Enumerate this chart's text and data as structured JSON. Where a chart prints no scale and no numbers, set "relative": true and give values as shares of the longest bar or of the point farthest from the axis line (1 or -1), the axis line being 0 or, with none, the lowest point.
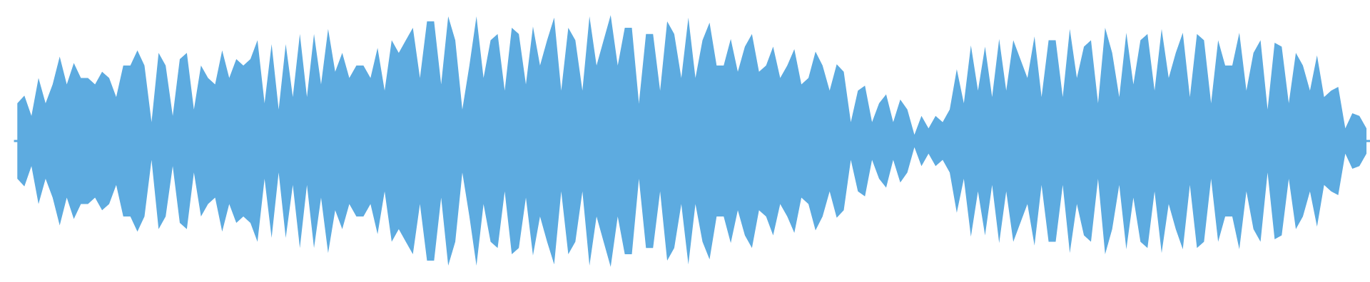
{
  "chart_data": {
    "type": "area",
    "relative": true,
    "ref_lines": [
      {
        "axis": "y",
        "value": 0,
        "color": "#5dabe0"
      }
    ],
    "categories": [
      null,
      null,
      null,
      null,
      null,
      null,
      null,
      null,
      null,
      null,
      null,
      null,
      null,
      null,
      null,
      null,
      null,
      null,
      null,
      null,
      null,
      null,
      null,
      null,
      null,
      null,
      null,
      null,
      null,
      null,
      null,
      null,
      null,
      null,
      null,
      null,
      null,
      null,
      null,
      null,
      null,
      null,
      null,
      null,
      null,
      null,
      null,
      null,
      null,
      null,
      null,
      null,
      null,
      null,
      null,
      null,
      null,
      null,
      null,
      null,
      null,
      null,
      null,
      null,
      null,
      null,
      null,
      null,
      null,
      null,
      null,
      null,
      null,
      null,
      null,
      null,
      null,
      null,
      null,
      null,
      null,
      null,
      null,
      null,
      null,
      null,
      null,
      null,
      null,
      null,
      null,
      null,
      null,
      null,
      null,
      null,
      null,
      null,
      null,
      null,
      null,
      null,
      null,
      null,
      null,
      null,
      null,
      null,
      null,
      null,
      null,
      null,
      null,
      null,
      null,
      null,
      null,
      null,
      null,
      null,
      null,
      null,
      null,
      null,
      null,
      null,
      null,
      null,
      null,
      null,
      null,
      null,
      null,
      null,
      null,
      null,
      null,
      null,
      null,
      null,
      null,
      null,
      null,
      null,
      null,
      null,
      null,
      null,
      null,
      null,
      null,
      null,
      null,
      null,
      null,
      null,
      null,
      null,
      null,
      null,
      null,
      null,
      null,
      null,
      null,
      null,
      null,
      null,
      null,
      null,
      null,
      null,
      null,
      null,
      null,
      null,
      null,
      null,
      null,
      null,
      null,
      null,
      null,
      null,
      null,
      null,
      null,
      null,
      null,
      null,
      null,
      null
    ],
    "series": [
      {
        "color": "#5dabe0",
        "values": [
          0.3,
          0.36,
          0.2,
          0.5,
          0.3,
          0.45,
          0.67,
          0.45,
          0.62,
          0.5,
          0.5,
          0.45,
          0.55,
          0.5,
          0.35,
          0.6,
          0.6,
          0.72,
          0.6,
          0.15,
          0.7,
          0.6,
          0.2,
          0.65,
          0.7,
          0.25,
          0.6,
          0.5,
          0.45,
          0.72,
          0.5,
          0.65,
          0.6,
          0.65,
          0.8,
          0.3,
          0.77,
          0.25,
          0.77,
          0.35,
          0.85,
          0.35,
          0.85,
          0.45,
          0.89,
          0.55,
          0.7,
          0.5,
          0.6,
          0.6,
          0.5,
          0.74,
          0.4,
          0.8,
          0.7,
          0.8,
          0.9,
          0.5,
          0.95,
          0.95,
          0.45,
          0.99,
          0.8,
          0.25,
          0.6,
          0.99,
          0.5,
          0.8,
          0.85,
          0.4,
          0.9,
          0.85,
          0.45,
          0.91,
          0.6,
          0.8,
          0.98,
          0.4,
          0.9,
          0.8,
          0.4,
          0.99,
          0.6,
          0.8,
          1.0,
          0.6,
          0.9,
          0.9,
          0.3,
          0.85,
          0.85,
          0.4,
          0.95,
          0.85,
          0.5,
          0.98,
          0.5,
          0.8,
          0.94,
          0.6,
          0.6,
          0.81,
          0.55,
          0.75,
          0.85,
          0.55,
          0.6,
          0.75,
          0.5,
          0.6,
          0.73,
          0.45,
          0.5,
          0.71,
          0.6,
          0.4,
          0.61,
          0.55,
          0.15,
          0.4,
          0.44,
          0.15,
          0.3,
          0.37,
          0.15,
          0.33,
          0.25,
          0.05,
          0.2,
          0.1,
          0.2,
          0.15,
          0.25,
          0.57,
          0.3,
          0.76,
          0.4,
          0.75,
          0.35,
          0.81,
          0.4,
          0.8,
          0.65,
          0.5,
          0.83,
          0.35,
          0.8,
          0.8,
          0.35,
          0.89,
          0.5,
          0.75,
          0.8,
          0.3,
          0.9,
          0.7,
          0.35,
          0.86,
          0.45,
          0.8,
          0.85,
          0.4,
          0.89,
          0.5,
          0.7,
          0.86,
          0.35,
          0.85,
          0.8,
          0.3,
          0.8,
          0.6,
          0.6,
          0.86,
          0.4,
          0.7,
          0.8,
          0.25,
          0.78,
          0.75,
          0.3,
          0.7,
          0.6,
          0.4,
          0.68,
          0.35,
          0.4,
          0.43,
          0.1,
          0.22,
          0.2,
          0.1
        ]
      },
      {
        "color": "#5dabe0",
        "values": [
          -0.3,
          -0.36,
          -0.2,
          -0.5,
          -0.3,
          -0.45,
          -0.67,
          -0.45,
          -0.62,
          -0.5,
          -0.5,
          -0.45,
          -0.55,
          -0.5,
          -0.35,
          -0.6,
          -0.6,
          -0.72,
          -0.6,
          -0.15,
          -0.7,
          -0.6,
          -0.2,
          -0.65,
          -0.7,
          -0.25,
          -0.6,
          -0.5,
          -0.45,
          -0.72,
          -0.5,
          -0.65,
          -0.6,
          -0.65,
          -0.8,
          -0.3,
          -0.77,
          -0.25,
          -0.77,
          -0.35,
          -0.85,
          -0.35,
          -0.85,
          -0.45,
          -0.89,
          -0.55,
          -0.7,
          -0.5,
          -0.6,
          -0.6,
          -0.5,
          -0.74,
          -0.4,
          -0.8,
          -0.7,
          -0.8,
          -0.9,
          -0.5,
          -0.95,
          -0.95,
          -0.45,
          -0.99,
          -0.8,
          -0.25,
          -0.6,
          -0.99,
          -0.5,
          -0.8,
          -0.85,
          -0.4,
          -0.9,
          -0.85,
          -0.45,
          -0.91,
          -0.6,
          -0.8,
          -0.98,
          -0.4,
          -0.9,
          -0.8,
          -0.4,
          -0.99,
          -0.6,
          -0.8,
          -1.0,
          -0.6,
          -0.9,
          -0.9,
          -0.3,
          -0.85,
          -0.85,
          -0.4,
          -0.95,
          -0.85,
          -0.5,
          -0.98,
          -0.5,
          -0.8,
          -0.94,
          -0.6,
          -0.6,
          -0.81,
          -0.55,
          -0.75,
          -0.85,
          -0.55,
          -0.6,
          -0.75,
          -0.5,
          -0.6,
          -0.73,
          -0.45,
          -0.5,
          -0.71,
          -0.6,
          -0.4,
          -0.61,
          -0.55,
          -0.15,
          -0.4,
          -0.44,
          -0.15,
          -0.3,
          -0.37,
          -0.15,
          -0.33,
          -0.25,
          -0.05,
          -0.2,
          -0.1,
          -0.2,
          -0.15,
          -0.25,
          -0.57,
          -0.3,
          -0.76,
          -0.4,
          -0.75,
          -0.35,
          -0.81,
          -0.4,
          -0.8,
          -0.65,
          -0.5,
          -0.83,
          -0.35,
          -0.8,
          -0.8,
          -0.35,
          -0.89,
          -0.5,
          -0.75,
          -0.8,
          -0.3,
          -0.9,
          -0.7,
          -0.35,
          -0.86,
          -0.45,
          -0.8,
          -0.85,
          -0.4,
          -0.89,
          -0.5,
          -0.7,
          -0.86,
          -0.35,
          -0.85,
          -0.8,
          -0.3,
          -0.8,
          -0.6,
          -0.6,
          -0.86,
          -0.4,
          -0.7,
          -0.8,
          -0.25,
          -0.78,
          -0.75,
          -0.3,
          -0.7,
          -0.6,
          -0.4,
          -0.68,
          -0.35,
          -0.4,
          -0.43,
          -0.1,
          -0.22,
          -0.2,
          -0.1
        ]
      }
    ]
  }
}
